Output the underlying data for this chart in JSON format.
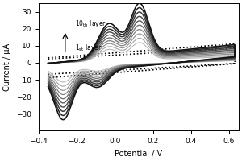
{
  "title": "",
  "xlabel": "Potential / V",
  "ylabel": "Current / μA",
  "xlim": [
    -0.4,
    0.65
  ],
  "ylim": [
    -40,
    35
  ],
  "yticks": [
    -30,
    -20,
    -10,
    0,
    10,
    20,
    30
  ],
  "xticks": [
    -0.4,
    -0.2,
    0.0,
    0.2,
    0.4,
    0.6
  ],
  "n_layers": 10,
  "arrow_label_10th": "10$_{\\mathregular{th}}$ layer",
  "arrow_label_1st": "1$_{\\mathregular{st}}$ layer",
  "background_color": "#ffffff",
  "figsize": [
    3.0,
    2.0
  ],
  "dpi": 100
}
